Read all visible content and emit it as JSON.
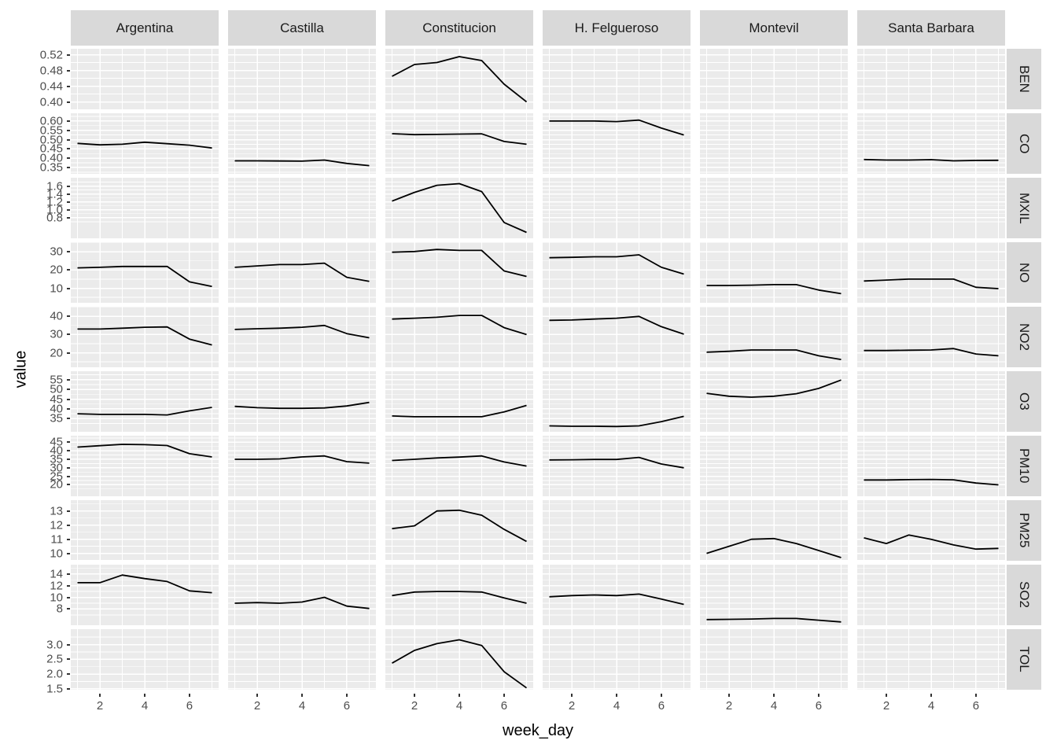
{
  "chart_data": {
    "type": "line",
    "title": "",
    "xlabel": "week_day",
    "ylabel": "value",
    "legend": "none",
    "grid": "on",
    "x": [
      1,
      2,
      3,
      4,
      5,
      6,
      7
    ],
    "x_ticks": [
      2,
      4,
      6
    ],
    "x_tick_labels": [
      "2",
      "4",
      "6"
    ],
    "x_minor": [
      1,
      3,
      5,
      7
    ],
    "xlim": [
      0.7,
      7.3
    ],
    "columns": [
      "Argentina",
      "Castilla",
      "Constitucion",
      "H. Felgueroso",
      "Montevil",
      "Santa Barbara"
    ],
    "rows": [
      {
        "label": "BEN",
        "ylim": [
          0.381,
          0.535
        ],
        "ticks": [
          0.4,
          0.44,
          0.48,
          0.52
        ],
        "tick_labels": [
          "0.40",
          "0.44",
          "0.48",
          "0.52"
        ],
        "series": {
          "Constitucion": [
            0.465,
            0.495,
            0.5,
            0.515,
            0.505,
            0.445,
            0.4
          ]
        }
      },
      {
        "label": "CO",
        "ylim": [
          0.316,
          0.642
        ],
        "ticks": [
          0.35,
          0.4,
          0.45,
          0.5,
          0.55,
          0.6
        ],
        "tick_labels": [
          "0.35",
          "0.40",
          "0.45",
          "0.50",
          "0.55",
          "0.60"
        ],
        "series": {
          "Argentina": [
            0.48,
            0.472,
            0.475,
            0.486,
            0.478,
            0.47,
            0.455
          ],
          "Castilla": [
            0.386,
            0.386,
            0.385,
            0.384,
            0.39,
            0.372,
            0.36
          ],
          "Constitucion": [
            0.532,
            0.527,
            0.528,
            0.53,
            0.531,
            0.49,
            0.475
          ],
          "H. Felgueroso": [
            0.6,
            0.6,
            0.6,
            0.597,
            0.605,
            0.562,
            0.525
          ],
          "Santa Barbara": [
            0.393,
            0.39,
            0.39,
            0.392,
            0.386,
            0.388,
            0.389
          ]
        }
      },
      {
        "label": "MXIL",
        "ylim": [
          0.28,
          1.81
        ],
        "ticks": [
          0.8,
          1.0,
          1.2,
          1.4,
          1.6
        ],
        "tick_labels": [
          "0.8",
          "1.0",
          "1.2",
          "1.4",
          "1.6"
        ],
        "series": {
          "Constitucion": [
            1.22,
            1.44,
            1.62,
            1.66,
            1.46,
            0.68,
            0.43
          ]
        }
      },
      {
        "label": "NO",
        "ylim": [
          2,
          35.3
        ],
        "ticks": [
          10,
          20,
          30
        ],
        "tick_labels": [
          "10",
          "20",
          "30"
        ],
        "series": {
          "Argentina": [
            21.2,
            21.5,
            22,
            22,
            22,
            13.5,
            11
          ],
          "Castilla": [
            21.5,
            22.3,
            23,
            23,
            23.8,
            16,
            13.8
          ],
          "Constitucion": [
            29.8,
            30.2,
            31.3,
            30.8,
            30.8,
            19.5,
            16.5
          ],
          "H. Felgueroso": [
            26.8,
            27,
            27.3,
            27.3,
            28.4,
            21.5,
            17.8
          ],
          "Montevil": [
            11.5,
            11.5,
            11.7,
            12,
            12,
            9,
            7
          ],
          "Santa Barbara": [
            14,
            14.5,
            15,
            15,
            15,
            10.5,
            9.8
          ]
        }
      },
      {
        "label": "NO2",
        "ylim": [
          12,
          45.3
        ],
        "ticks": [
          20,
          30,
          40
        ],
        "tick_labels": [
          "20",
          "30",
          "40"
        ],
        "series": {
          "Argentina": [
            33,
            33,
            33.5,
            34,
            34.2,
            27.5,
            24.3
          ],
          "Castilla": [
            32.8,
            33.2,
            33.5,
            34,
            35,
            30.5,
            28.2
          ],
          "Constitucion": [
            38.5,
            39,
            39.5,
            40.5,
            40.5,
            33.8,
            30
          ],
          "H. Felgueroso": [
            37.8,
            38,
            38.5,
            39,
            40,
            34.3,
            30.2
          ],
          "Montevil": [
            20.3,
            20.8,
            21.5,
            21.5,
            21.5,
            18.3,
            16.3
          ],
          "Santa Barbara": [
            21.2,
            21.2,
            21.4,
            21.5,
            22.3,
            19.3,
            18.3
          ]
        }
      },
      {
        "label": "O3",
        "ylim": [
          28.3,
          59.3
        ],
        "ticks": [
          35,
          40,
          45,
          50,
          55
        ],
        "tick_labels": [
          "35",
          "40",
          "45",
          "50",
          "55"
        ],
        "series": {
          "Argentina": [
            37.5,
            37.2,
            37.2,
            37.2,
            36.9,
            39,
            40.8
          ],
          "Castilla": [
            41.3,
            40.6,
            40.3,
            40.3,
            40.5,
            41.5,
            43.3
          ],
          "Constitucion": [
            36.4,
            36,
            36,
            36,
            36,
            38.5,
            41.8
          ],
          "H. Felgueroso": [
            31.3,
            31.1,
            31.1,
            31,
            31.3,
            33.5,
            36.2
          ],
          "Montevil": [
            48,
            46.5,
            46,
            46.5,
            47.8,
            50.5,
            54.8
          ]
        }
      },
      {
        "label": "PM10",
        "ylim": [
          13.2,
          48.9
        ],
        "ticks": [
          20,
          25,
          30,
          35,
          40,
          45
        ],
        "tick_labels": [
          "20",
          "25",
          "30",
          "35",
          "40",
          "45"
        ],
        "series": {
          "Argentina": [
            42.2,
            43,
            43.8,
            43.6,
            43.1,
            38.3,
            36.4
          ],
          "Castilla": [
            35,
            35,
            35.2,
            36.4,
            37,
            33.6,
            32.7
          ],
          "Constitucion": [
            34.3,
            35,
            35.8,
            36.3,
            37,
            33.4,
            31
          ],
          "H. Felgueroso": [
            34.6,
            34.7,
            34.9,
            34.9,
            36.1,
            32.2,
            30
          ],
          "Santa Barbara": [
            22.8,
            22.8,
            23,
            23.1,
            22.9,
            21,
            19.9
          ]
        }
      },
      {
        "label": "PM25",
        "ylim": [
          9.48,
          13.76
        ],
        "ticks": [
          10,
          11,
          12,
          13
        ],
        "tick_labels": [
          "10",
          "11",
          "12",
          "13"
        ],
        "series": {
          "Constitucion": [
            11.75,
            11.95,
            13.0,
            13.05,
            12.7,
            11.7,
            10.85
          ],
          "Montevil": [
            10.0,
            10.5,
            11.0,
            11.05,
            10.7,
            10.2,
            9.7
          ],
          "Santa Barbara": [
            11.1,
            10.7,
            11.3,
            11.0,
            10.6,
            10.3,
            10.35
          ]
        }
      },
      {
        "label": "SO2",
        "ylim": [
          5.24,
          15.57
        ],
        "ticks": [
          8,
          10,
          12,
          14
        ],
        "tick_labels": [
          "8",
          "10",
          "12",
          "14"
        ],
        "series": {
          "Argentina": [
            12.5,
            12.5,
            13.8,
            13.2,
            12.7,
            11.1,
            10.8
          ],
          "Castilla": [
            9.0,
            9.1,
            9.0,
            9.2,
            10.0,
            8.5,
            8.1
          ],
          "Constitucion": [
            10.3,
            10.9,
            11.0,
            11.0,
            10.9,
            9.9,
            9.0
          ],
          "H. Felgueroso": [
            10.1,
            10.3,
            10.4,
            10.3,
            10.55,
            9.7,
            8.8
          ],
          "Montevil": [
            6.2,
            6.25,
            6.3,
            6.4,
            6.4,
            6.1,
            5.8
          ]
        }
      },
      {
        "label": "TOL",
        "ylim": [
          1.47,
          3.52
        ],
        "ticks": [
          1.5,
          2.0,
          2.5,
          3.0
        ],
        "tick_labels": [
          "1.5",
          "2.0",
          "2.5",
          "3.0"
        ],
        "series": {
          "Constitucion": [
            2.37,
            2.8,
            3.03,
            3.16,
            2.97,
            2.08,
            1.53
          ]
        }
      }
    ]
  },
  "colors": {
    "panel_bg": "#EBEBEB",
    "strip_bg": "#D9D9D9",
    "gridline": "#FFFFFF",
    "data_line": "#000000",
    "tick_label": "#4D4D4D",
    "tick_mark": "#333333",
    "strip_text": "#1A1A1A",
    "axis_title": "#000000"
  }
}
